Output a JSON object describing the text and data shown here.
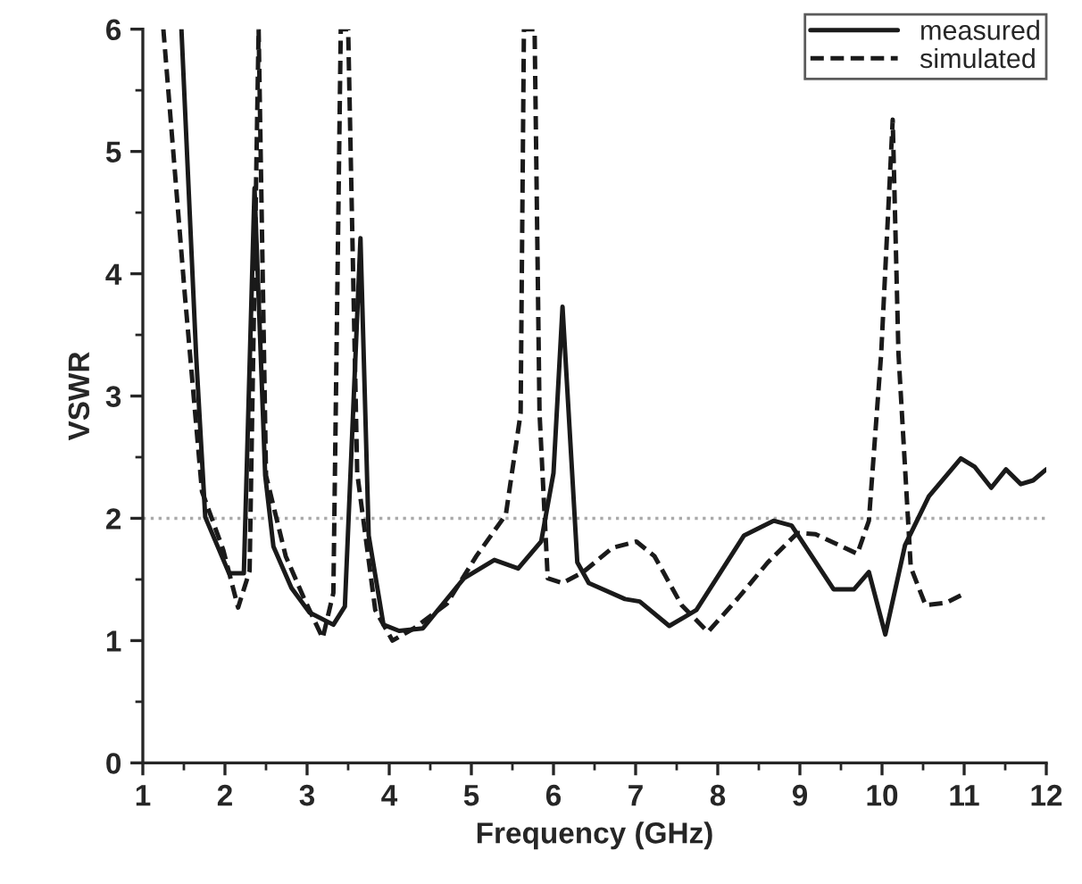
{
  "chart_data": {
    "type": "line",
    "xlabel": "Frequency (GHz)",
    "ylabel": "VSWR",
    "xlim": [
      1,
      12
    ],
    "xticks": [
      1,
      2,
      3,
      4,
      5,
      6,
      7,
      8,
      9,
      10,
      11,
      12
    ],
    "ylim": [
      0,
      6
    ],
    "yticks": [
      0,
      1,
      2,
      3,
      4,
      5,
      6
    ],
    "grid": false,
    "legend": "top right",
    "ref_lines": [
      {
        "axis": "y",
        "value": 2,
        "color": "#aaaaaa",
        "line_style": "dotted"
      }
    ],
    "series": [
      {
        "name": "measured",
        "color": "#1a1a1a",
        "line_style": "solid",
        "x": [
          1.47,
          1.65,
          1.76,
          2.05,
          2.23,
          2.36,
          2.49,
          2.59,
          2.81,
          3.03,
          3.32,
          3.46,
          3.65,
          3.75,
          3.93,
          4.12,
          4.41,
          4.91,
          5.28,
          5.57,
          5.85,
          6.0,
          6.11,
          6.29,
          6.43,
          6.87,
          7.05,
          7.41,
          7.74,
          8.32,
          8.68,
          8.9,
          9.41,
          9.66,
          9.84,
          10.04,
          10.28,
          10.57,
          10.96,
          11.13,
          11.33,
          11.51,
          11.69,
          11.84,
          12.0
        ],
        "values": [
          6.0,
          3.32,
          2.01,
          1.55,
          1.55,
          4.7,
          2.35,
          1.77,
          1.43,
          1.23,
          1.13,
          1.28,
          4.29,
          1.86,
          1.13,
          1.08,
          1.1,
          1.51,
          1.66,
          1.59,
          1.81,
          2.37,
          3.73,
          1.64,
          1.47,
          1.34,
          1.32,
          1.12,
          1.25,
          1.86,
          1.98,
          1.94,
          1.42,
          1.42,
          1.56,
          1.05,
          1.78,
          2.18,
          2.49,
          2.42,
          2.25,
          2.4,
          2.28,
          2.31,
          2.4
        ]
      },
      {
        "name": "simulated",
        "color": "#1a1a1a",
        "line_style": "dashed",
        "x": [
          1.25,
          1.51,
          1.72,
          1.98,
          2.16,
          2.3,
          2.41,
          2.5,
          2.74,
          2.96,
          3.19,
          3.32,
          3.41,
          3.5,
          3.61,
          3.83,
          4.04,
          4.3,
          4.7,
          5.06,
          5.42,
          5.6,
          5.64,
          5.77,
          5.83,
          5.93,
          6.11,
          6.36,
          6.72,
          7.01,
          7.23,
          7.56,
          7.88,
          8.25,
          8.61,
          8.97,
          9.19,
          9.7,
          9.84,
          9.99,
          10.13,
          10.2,
          10.35,
          10.53,
          10.78,
          10.96
        ],
        "values": [
          6.0,
          3.84,
          2.22,
          1.74,
          1.27,
          1.57,
          6.0,
          2.35,
          1.69,
          1.35,
          1.02,
          1.39,
          6.0,
          6.0,
          2.37,
          1.25,
          1.0,
          1.1,
          1.3,
          1.69,
          2.03,
          2.86,
          6.0,
          6.0,
          2.86,
          1.51,
          1.47,
          1.56,
          1.76,
          1.81,
          1.69,
          1.29,
          1.07,
          1.35,
          1.64,
          1.88,
          1.87,
          1.71,
          1.98,
          3.35,
          5.26,
          3.35,
          1.6,
          1.29,
          1.31,
          1.37
        ]
      }
    ]
  }
}
